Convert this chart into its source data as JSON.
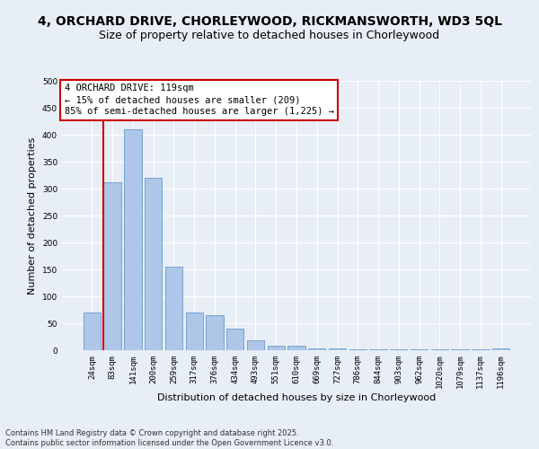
{
  "title1": "4, ORCHARD DRIVE, CHORLEYWOOD, RICKMANSWORTH, WD3 5QL",
  "title2": "Size of property relative to detached houses in Chorleywood",
  "xlabel": "Distribution of detached houses by size in Chorleywood",
  "ylabel": "Number of detached properties",
  "categories": [
    "24sqm",
    "83sqm",
    "141sqm",
    "200sqm",
    "259sqm",
    "317sqm",
    "376sqm",
    "434sqm",
    "493sqm",
    "551sqm",
    "610sqm",
    "669sqm",
    "727sqm",
    "786sqm",
    "844sqm",
    "903sqm",
    "962sqm",
    "1020sqm",
    "1079sqm",
    "1137sqm",
    "1196sqm"
  ],
  "values": [
    70,
    312,
    410,
    320,
    155,
    70,
    65,
    40,
    18,
    8,
    8,
    3,
    3,
    2,
    2,
    1,
    1,
    1,
    1,
    1,
    4
  ],
  "bar_color": "#aec6e8",
  "bar_edge_color": "#6699cc",
  "vline_color": "#cc0000",
  "vline_pos": 0.5,
  "annotation_text": "4 ORCHARD DRIVE: 119sqm\n← 15% of detached houses are smaller (209)\n85% of semi-detached houses are larger (1,225) →",
  "annotation_box_color": "#ffffff",
  "annotation_edge_color": "#cc0000",
  "ylim": [
    0,
    500
  ],
  "yticks": [
    0,
    50,
    100,
    150,
    200,
    250,
    300,
    350,
    400,
    450,
    500
  ],
  "background_color": "#e8eef5",
  "plot_bg_color": "#e8eef5",
  "footer_text": "Contains HM Land Registry data © Crown copyright and database right 2025.\nContains public sector information licensed under the Open Government Licence v3.0.",
  "title_fontsize": 10,
  "subtitle_fontsize": 9,
  "axis_label_fontsize": 8,
  "tick_fontsize": 6.5,
  "annotation_fontsize": 7.5,
  "footer_fontsize": 6
}
